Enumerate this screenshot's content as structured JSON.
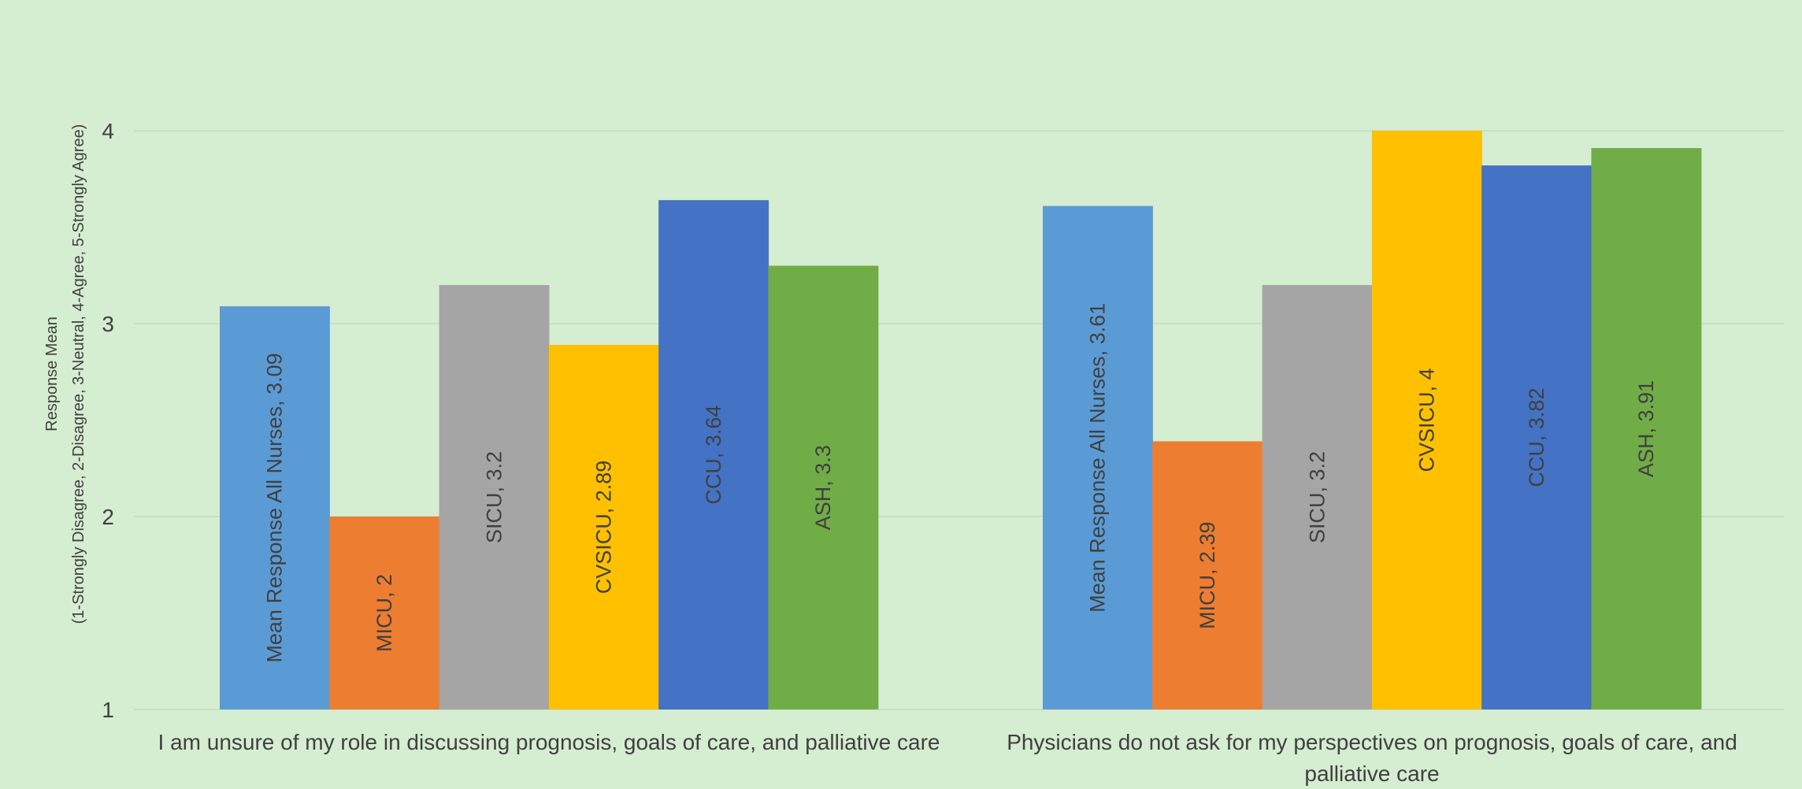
{
  "chart_data": {
    "type": "bar",
    "title": "",
    "xlabel": "",
    "ylabel_lines": [
      "Response Mean",
      "(1-Strongly Disagree, 2-Disagree, 3-Neutral, 4-Agree, 5-Strongly Agree)"
    ],
    "ylim": [
      1,
      4
    ],
    "yticks": [
      1,
      2,
      3,
      4
    ],
    "grid": true,
    "legend": "none",
    "categories": [
      [
        "I am unsure of my role in discussing prognosis, goals of care, and palliative care"
      ],
      [
        "Physicians do not ask for my perspectives on prognosis, goals of care, and",
        "palliative care"
      ]
    ],
    "series": [
      {
        "name": "Mean Response All Nurses",
        "color": "#5b9bd5",
        "values": [
          3.09,
          3.61
        ]
      },
      {
        "name": "MICU",
        "color": "#ed7d31",
        "values": [
          2,
          2.39
        ]
      },
      {
        "name": "SICU",
        "color": "#a5a5a5",
        "values": [
          3.2,
          3.2
        ]
      },
      {
        "name": "CVSICU",
        "color": "#ffc000",
        "values": [
          2.89,
          4
        ]
      },
      {
        "name": "CCU",
        "color": "#4472c4",
        "values": [
          3.64,
          3.82
        ]
      },
      {
        "name": "ASH",
        "color": "#70ad47",
        "values": [
          3.3,
          3.91
        ]
      }
    ],
    "data_labels": [
      [
        "Mean Response All Nurses, 3.09",
        "Mean Response All Nurses, 3.61"
      ],
      [
        "MICU, 2",
        "MICU, 2.39"
      ],
      [
        "SICU, 3.2",
        "SICU, 3.2"
      ],
      [
        "CVSICU, 2.89",
        "CVSICU, 4"
      ],
      [
        "CCU, 3.64",
        "CCU, 3.82"
      ],
      [
        "ASH, 3.3",
        "ASH, 3.91"
      ]
    ],
    "colors": {
      "background": "#d5edd0",
      "gridline": "#c4dcbf",
      "axis_text": "#404040",
      "label_text": "#404040"
    }
  }
}
